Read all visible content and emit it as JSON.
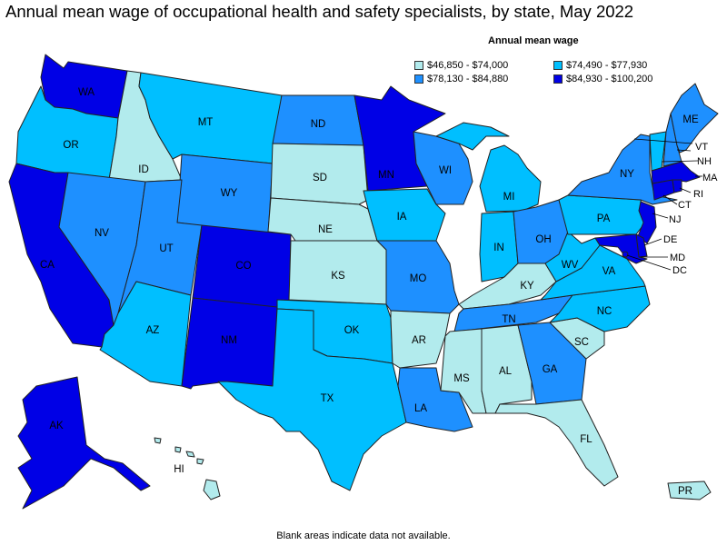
{
  "title": "Annual mean wage of occupational health and safety specialists, by state, May 2022",
  "legend": {
    "title": "Annual mean wage",
    "items": [
      {
        "label": "$46,850 - $74,000",
        "color": "#b2ebed"
      },
      {
        "label": "$74,490 - $77,930",
        "color": "#00bfff"
      },
      {
        "label": "$78,130 - $84,880",
        "color": "#1e90ff"
      },
      {
        "label": "$84,930 - $100,200",
        "color": "#0000e6"
      }
    ]
  },
  "footnote": "Blank areas indicate data not available.",
  "states": {
    "WA": {
      "label": "WA",
      "tier": 3
    },
    "OR": {
      "label": "OR",
      "tier": 1
    },
    "CA": {
      "label": "CA",
      "tier": 3
    },
    "ID": {
      "label": "ID",
      "tier": 0
    },
    "NV": {
      "label": "NV",
      "tier": 2
    },
    "MT": {
      "label": "MT",
      "tier": 1
    },
    "WY": {
      "label": "WY",
      "tier": 2
    },
    "UT": {
      "label": "UT",
      "tier": 2
    },
    "AZ": {
      "label": "AZ",
      "tier": 1
    },
    "CO": {
      "label": "CO",
      "tier": 3
    },
    "NM": {
      "label": "NM",
      "tier": 3
    },
    "ND": {
      "label": "ND",
      "tier": 2
    },
    "SD": {
      "label": "SD",
      "tier": 0
    },
    "NE": {
      "label": "NE",
      "tier": 0
    },
    "KS": {
      "label": "KS",
      "tier": 0
    },
    "OK": {
      "label": "OK",
      "tier": 1
    },
    "TX": {
      "label": "TX",
      "tier": 1
    },
    "MN": {
      "label": "MN",
      "tier": 3
    },
    "IA": {
      "label": "IA",
      "tier": 1
    },
    "MO": {
      "label": "MO",
      "tier": 2
    },
    "AR": {
      "label": "AR",
      "tier": 0
    },
    "LA": {
      "label": "LA",
      "tier": 2
    },
    "WI": {
      "label": "WI",
      "tier": 2
    },
    "MI": {
      "label": "MI",
      "tier": 1
    },
    "IN": {
      "label": "IN",
      "tier": 1
    },
    "OH": {
      "label": "OH",
      "tier": 2
    },
    "KY": {
      "label": "KY",
      "tier": 0
    },
    "TN": {
      "label": "TN",
      "tier": 2
    },
    "MS": {
      "label": "MS",
      "tier": 0
    },
    "AL": {
      "label": "AL",
      "tier": 0
    },
    "GA": {
      "label": "GA",
      "tier": 2
    },
    "FL": {
      "label": "FL",
      "tier": 0
    },
    "SC": {
      "label": "SC",
      "tier": 0
    },
    "NC": {
      "label": "NC",
      "tier": 1
    },
    "VA": {
      "label": "VA",
      "tier": 1
    },
    "WV": {
      "label": "WV",
      "tier": 1
    },
    "PA": {
      "label": "PA",
      "tier": 1
    },
    "NY": {
      "label": "NY",
      "tier": 2
    },
    "VT": {
      "label": "VT",
      "tier": 1
    },
    "NH": {
      "label": "NH",
      "tier": 2
    },
    "ME": {
      "label": "ME",
      "tier": 2
    },
    "MA": {
      "label": "MA",
      "tier": 3
    },
    "RI": {
      "label": "RI",
      "tier": 3
    },
    "CT": {
      "label": "CT",
      "tier": 3
    },
    "NJ": {
      "label": "NJ",
      "tier": 3
    },
    "DE": {
      "label": "DE",
      "tier": 3
    },
    "MD": {
      "label": "MD",
      "tier": 3
    },
    "DC": {
      "label": "DC",
      "tier": 3
    },
    "AK": {
      "label": "AK",
      "tier": 3
    },
    "HI": {
      "label": "HI",
      "tier": 0
    },
    "PR": {
      "label": "PR",
      "tier": 0
    }
  }
}
